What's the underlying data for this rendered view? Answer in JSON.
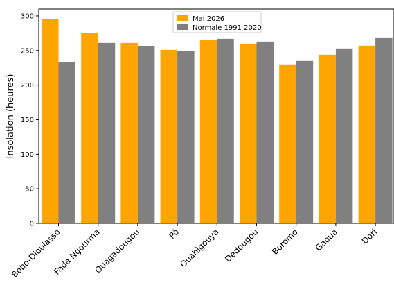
{
  "chart_data": {
    "type": "bar",
    "title": "",
    "xlabel": "",
    "ylabel": "Insolation (heures)",
    "ylim": [
      0,
      310
    ],
    "yticks": [
      0,
      50,
      100,
      150,
      200,
      250,
      300
    ],
    "grid": false,
    "legend_position": "top-center",
    "categories": [
      "Bobo-Dioulasso",
      "Fada Ngourma",
      "Ouagadougou",
      "Pô",
      "Ouahigouya",
      "Dédougou",
      "Boromo",
      "Gaoua",
      "Dori"
    ],
    "series": [
      {
        "name": "Mai 2026",
        "color": "#FFA500",
        "values": [
          295,
          275,
          261,
          251,
          265,
          260,
          230,
          244,
          257
        ]
      },
      {
        "name": "Normale 1991 2020",
        "color": "#808080",
        "values": [
          233,
          261,
          256,
          249,
          267,
          263,
          235,
          253,
          268
        ]
      }
    ]
  }
}
